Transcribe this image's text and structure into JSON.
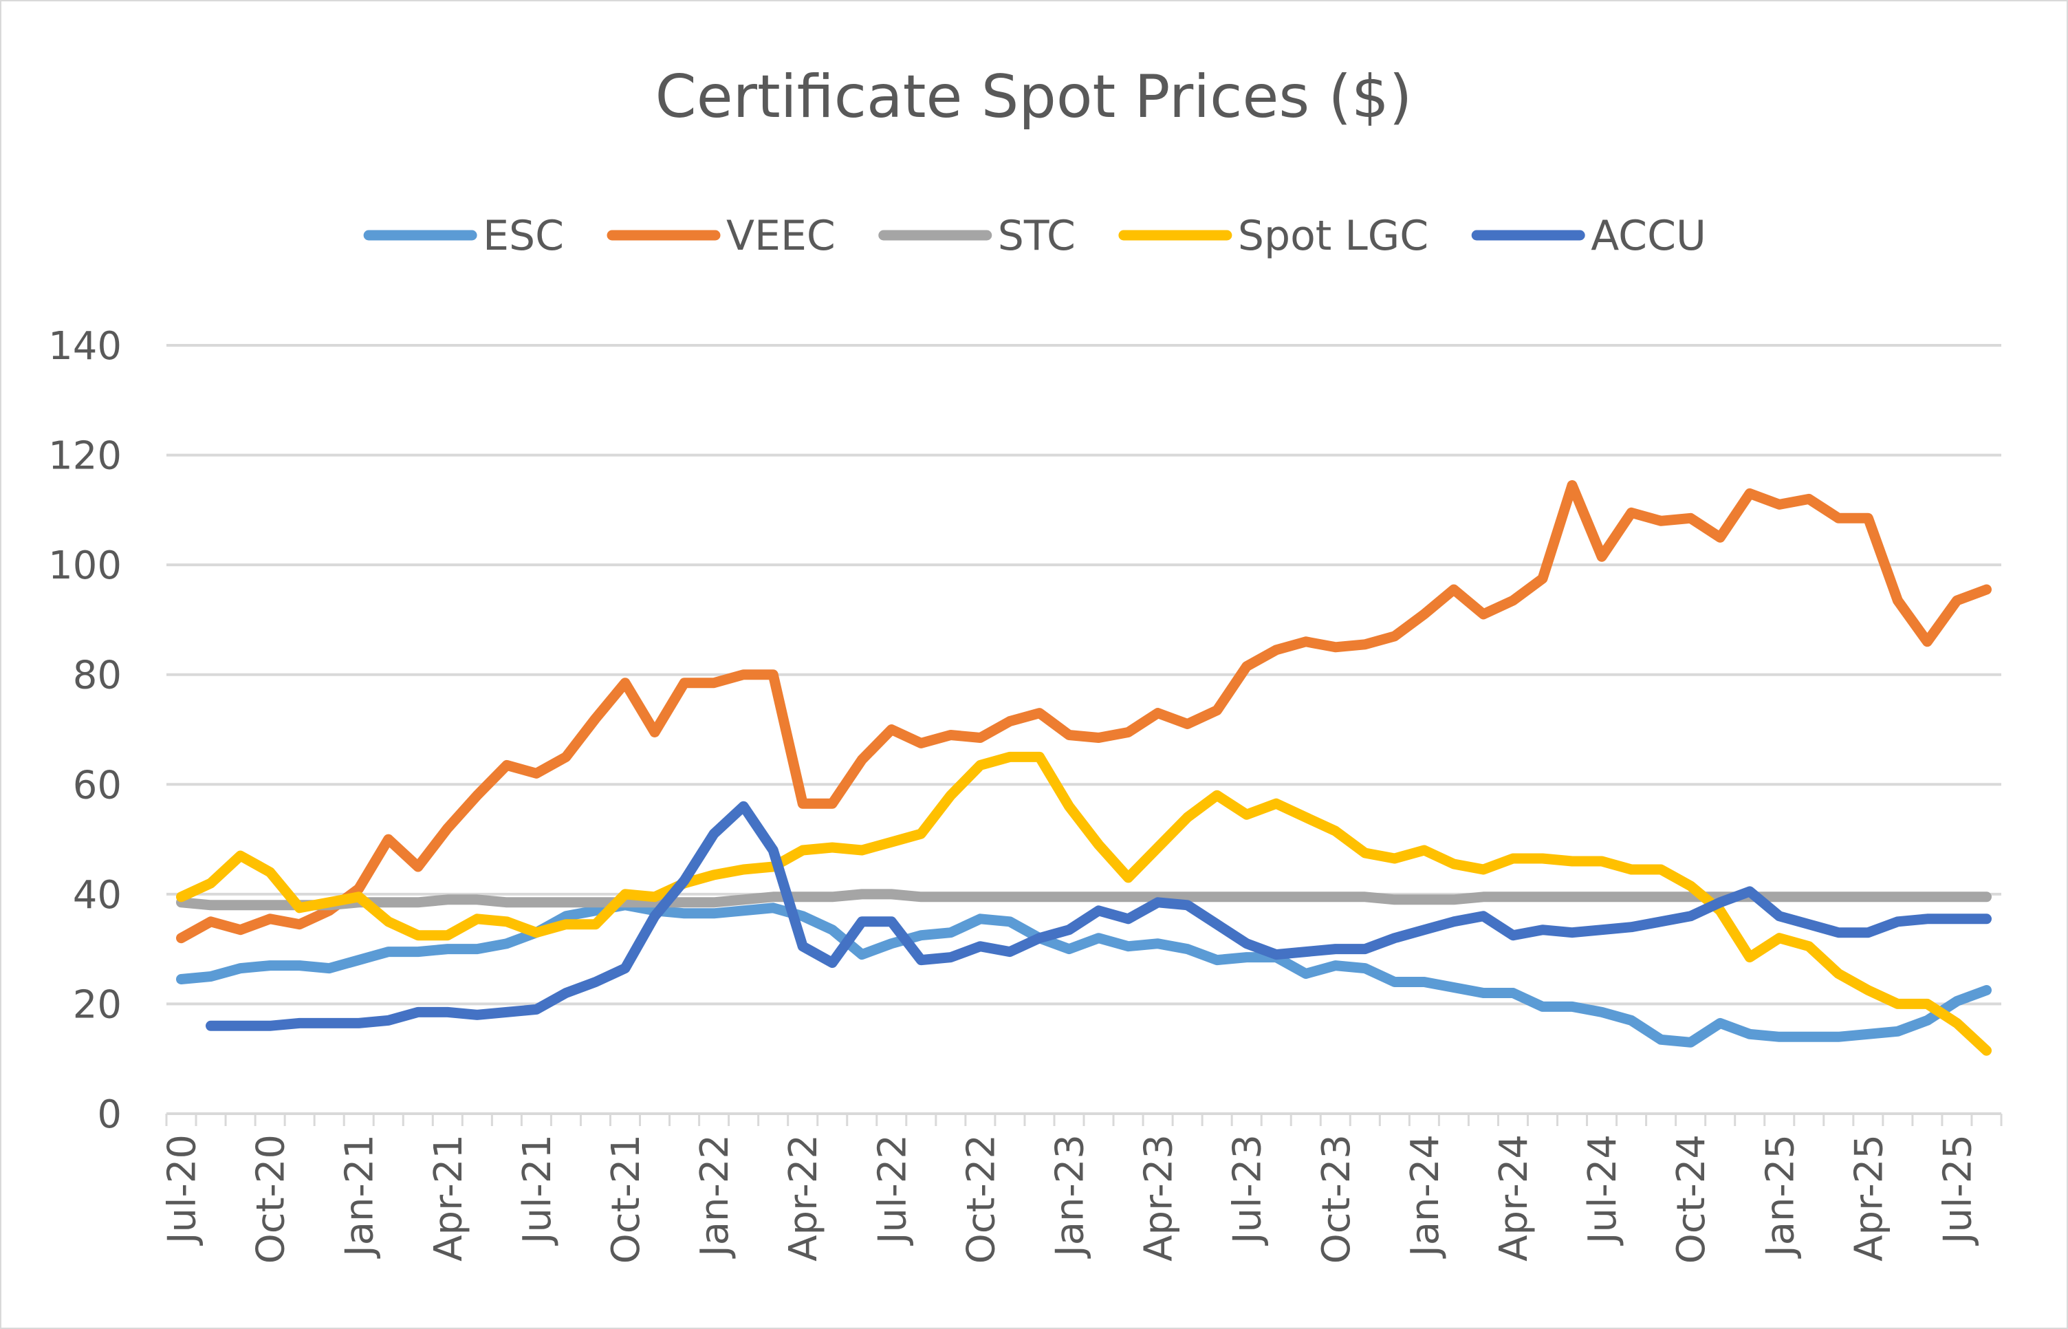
{
  "chart_data": {
    "type": "line",
    "title": "Certificate Spot Prices ($)",
    "xlabel": "",
    "ylabel": "",
    "ylim": [
      0,
      140
    ],
    "yticks": [
      0,
      20,
      40,
      60,
      80,
      100,
      120,
      140
    ],
    "grid": true,
    "legend_position": "top",
    "x": [
      "Jul-20",
      "Aug-20",
      "Sep-20",
      "Oct-20",
      "Nov-20",
      "Dec-20",
      "Jan-21",
      "Feb-21",
      "Mar-21",
      "Apr-21",
      "May-21",
      "Jun-21",
      "Jul-21",
      "Aug-21",
      "Sep-21",
      "Oct-21",
      "Nov-21",
      "Dec-21",
      "Jan-22",
      "Feb-22",
      "Mar-22",
      "Apr-22",
      "May-22",
      "Jun-22",
      "Jul-22",
      "Aug-22",
      "Sep-22",
      "Oct-22",
      "Nov-22",
      "Dec-22",
      "Jan-23",
      "Feb-23",
      "Mar-23",
      "Apr-23",
      "May-23",
      "Jun-23",
      "Jul-23",
      "Aug-23",
      "Sep-23",
      "Oct-23",
      "Nov-23",
      "Dec-23",
      "Jan-24",
      "Feb-24",
      "Mar-24",
      "Apr-24",
      "May-24",
      "Jun-24",
      "Jul-24",
      "Aug-24",
      "Sep-24",
      "Oct-24",
      "Nov-24",
      "Dec-24",
      "Jan-25",
      "Feb-25",
      "Mar-25",
      "Apr-25",
      "May-25",
      "Jun-25",
      "Jul-25",
      "Aug-25"
    ],
    "x_tick_labels": [
      "Jul-20",
      "Oct-20",
      "Jan-21",
      "Apr-21",
      "Jul-21",
      "Oct-21",
      "Jan-22",
      "Apr-22",
      "Jul-22",
      "Oct-22",
      "Jan-23",
      "Apr-23",
      "Jul-23",
      "Oct-23",
      "Jan-24",
      "Apr-24",
      "Jul-24",
      "Oct-24",
      "Jan-25",
      "Apr-25",
      "Jul-25"
    ],
    "series": [
      {
        "name": "ESC",
        "color": "#5b9bd5",
        "values": [
          24.5,
          25,
          26.5,
          27,
          27,
          26.5,
          28,
          29.5,
          29.5,
          30,
          30,
          31,
          33,
          36,
          37,
          38,
          37,
          36.5,
          36.5,
          37,
          37.5,
          36,
          33.5,
          29,
          31,
          32.5,
          33,
          35.5,
          35,
          32,
          30,
          32,
          30.5,
          31,
          30,
          28,
          28.5,
          28.5,
          25.5,
          27,
          26.5,
          24,
          24,
          23,
          22,
          22,
          19.5,
          19.5,
          18.5,
          17,
          13.5,
          13,
          16.5,
          14.5,
          14,
          14,
          14,
          14.5,
          15,
          17,
          20.5,
          22.5
        ]
      },
      {
        "name": "VEEC",
        "color": "#ed7d31",
        "values": [
          32,
          35,
          33.5,
          35.5,
          34.5,
          37,
          41,
          50,
          45,
          52,
          58,
          63.5,
          62,
          65,
          72,
          78.5,
          69.5,
          78.5,
          78.5,
          80,
          80,
          56.5,
          56.5,
          64.5,
          70,
          67.5,
          69,
          68.5,
          71.5,
          73,
          69,
          68.5,
          69.5,
          73,
          71,
          73.5,
          81.5,
          84.5,
          86,
          85,
          85.5,
          87,
          91,
          95.5,
          91,
          93.5,
          97.5,
          114.5,
          101.5,
          109.5,
          108,
          108.5,
          105,
          113,
          111,
          112,
          108.5,
          108.5,
          93.5,
          86,
          93.5,
          95.5
        ]
      },
      {
        "name": "STC",
        "color": "#a5a5a5",
        "values": [
          38.5,
          38,
          38,
          38,
          38,
          38,
          38.5,
          38.5,
          38.5,
          39,
          39,
          38.5,
          38.5,
          38.5,
          38.5,
          38.5,
          38.5,
          38.5,
          38.5,
          39,
          39.5,
          39.5,
          39.5,
          40,
          40,
          39.5,
          39.5,
          39.5,
          39.5,
          39.5,
          39.5,
          39.5,
          39.5,
          39.5,
          39.5,
          39.5,
          39.5,
          39.5,
          39.5,
          39.5,
          39.5,
          39,
          39,
          39,
          39.5,
          39.5,
          39.5,
          39.5,
          39.5,
          39.5,
          39.5,
          39.5,
          39.5,
          39.5,
          39.5,
          39.5,
          39.5,
          39.5,
          39.5,
          39.5,
          39.5,
          39.5
        ]
      },
      {
        "name": "Spot LGC",
        "color": "#ffc000",
        "values": [
          39.5,
          42,
          47,
          44,
          37.5,
          38.5,
          39.5,
          35,
          32.5,
          32.5,
          35.5,
          35,
          33,
          34.5,
          34.5,
          40,
          39.5,
          42,
          43.5,
          44.5,
          45,
          48,
          48.5,
          48,
          49.5,
          51,
          58,
          63.5,
          65,
          65,
          56,
          49,
          43,
          48.5,
          54,
          58,
          54.5,
          56.5,
          54,
          51.5,
          47.5,
          46.5,
          48,
          45.5,
          44.5,
          46.5,
          46.5,
          46,
          46,
          44.5,
          44.5,
          41.5,
          37,
          28.5,
          32,
          30.5,
          25.5,
          22.5,
          20,
          20,
          16.5,
          11.5
        ]
      },
      {
        "name": "ACCU",
        "color": "#4472c4",
        "values": [
          null,
          16,
          16,
          16,
          16.5,
          16.5,
          16.5,
          17,
          18.5,
          18.5,
          18,
          18.5,
          19,
          22,
          24,
          26.5,
          36,
          42.5,
          51,
          56,
          48,
          30.5,
          27.5,
          35,
          35,
          28,
          28.5,
          30.5,
          29.5,
          32,
          33.5,
          37,
          35.5,
          38.5,
          38,
          34.5,
          31,
          29,
          29.5,
          30,
          30,
          32,
          33.5,
          35,
          36,
          32.5,
          33.5,
          33,
          33.5,
          34,
          35,
          36,
          38.5,
          40.5,
          36,
          34.5,
          33,
          33,
          35,
          35.5,
          35.5,
          35.5
        ]
      }
    ]
  }
}
